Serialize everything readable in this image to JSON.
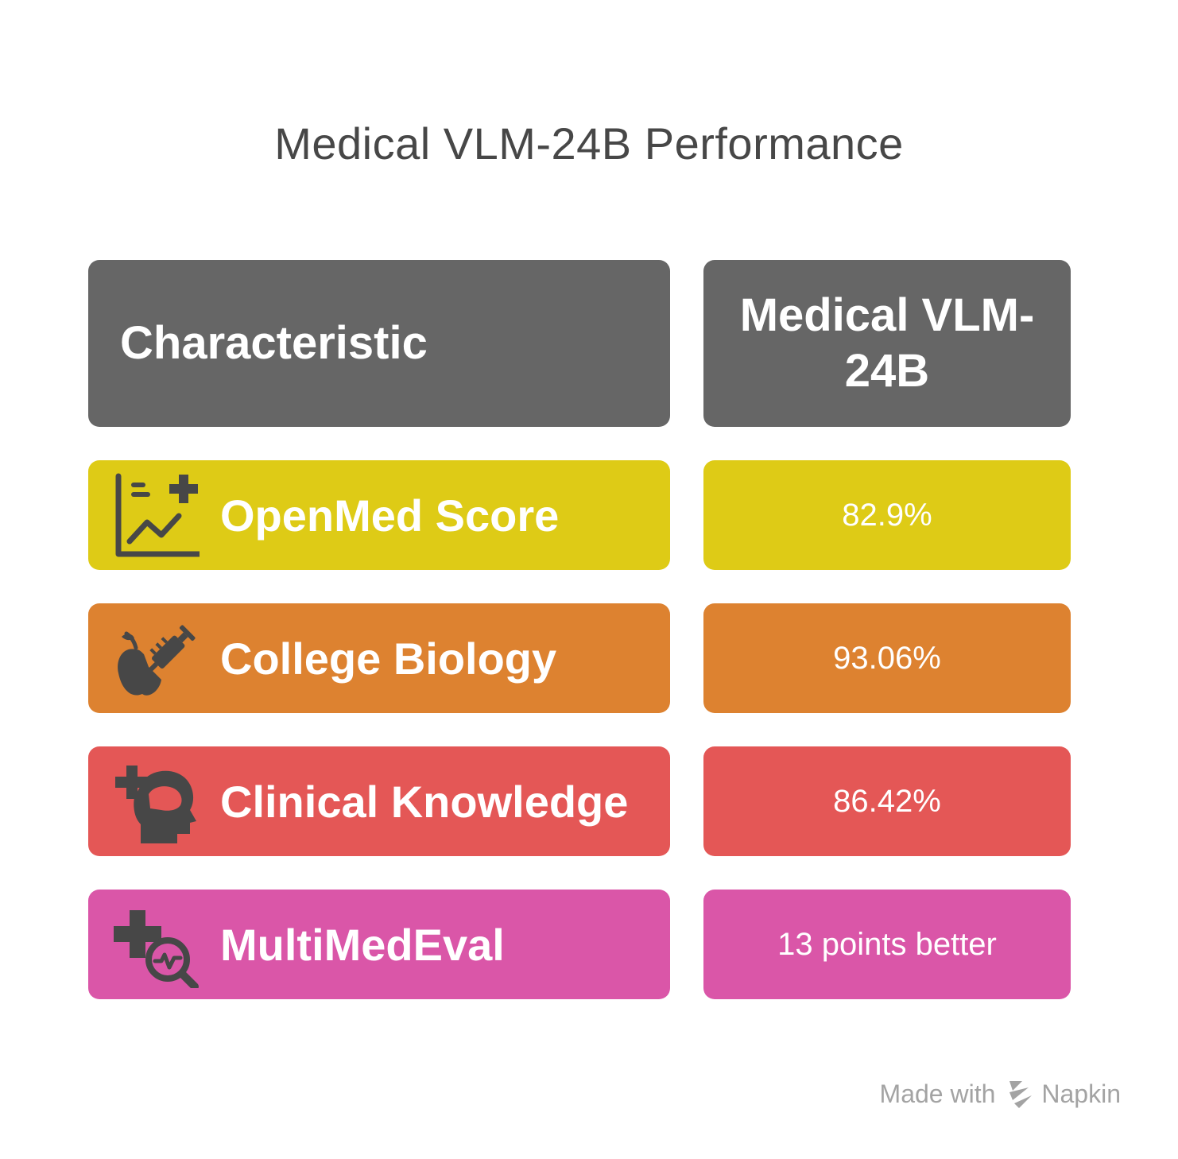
{
  "title": "Medical VLM-24B Performance",
  "header": {
    "left": "Characteristic",
    "right": "Medical VLM-24B"
  },
  "rows": [
    {
      "label": "OpenMed Score",
      "value": "82.9%",
      "icon": "chart-plus-icon",
      "color": "#decb16"
    },
    {
      "label": "College Biology",
      "value": "93.06%",
      "icon": "apple-syringe-icon",
      "color": "#dd8230"
    },
    {
      "label": "Clinical Knowledge",
      "value": "86.42%",
      "icon": "head-medical-icon",
      "color": "#e45756"
    },
    {
      "label": "MultiMedEval",
      "value": "13 points better",
      "icon": "plus-magnifier-icon",
      "color": "#da56a8"
    }
  ],
  "footer": {
    "made_with": "Made with",
    "brand": "Napkin"
  },
  "colors": {
    "header": "#666666",
    "icon": "#474747"
  }
}
